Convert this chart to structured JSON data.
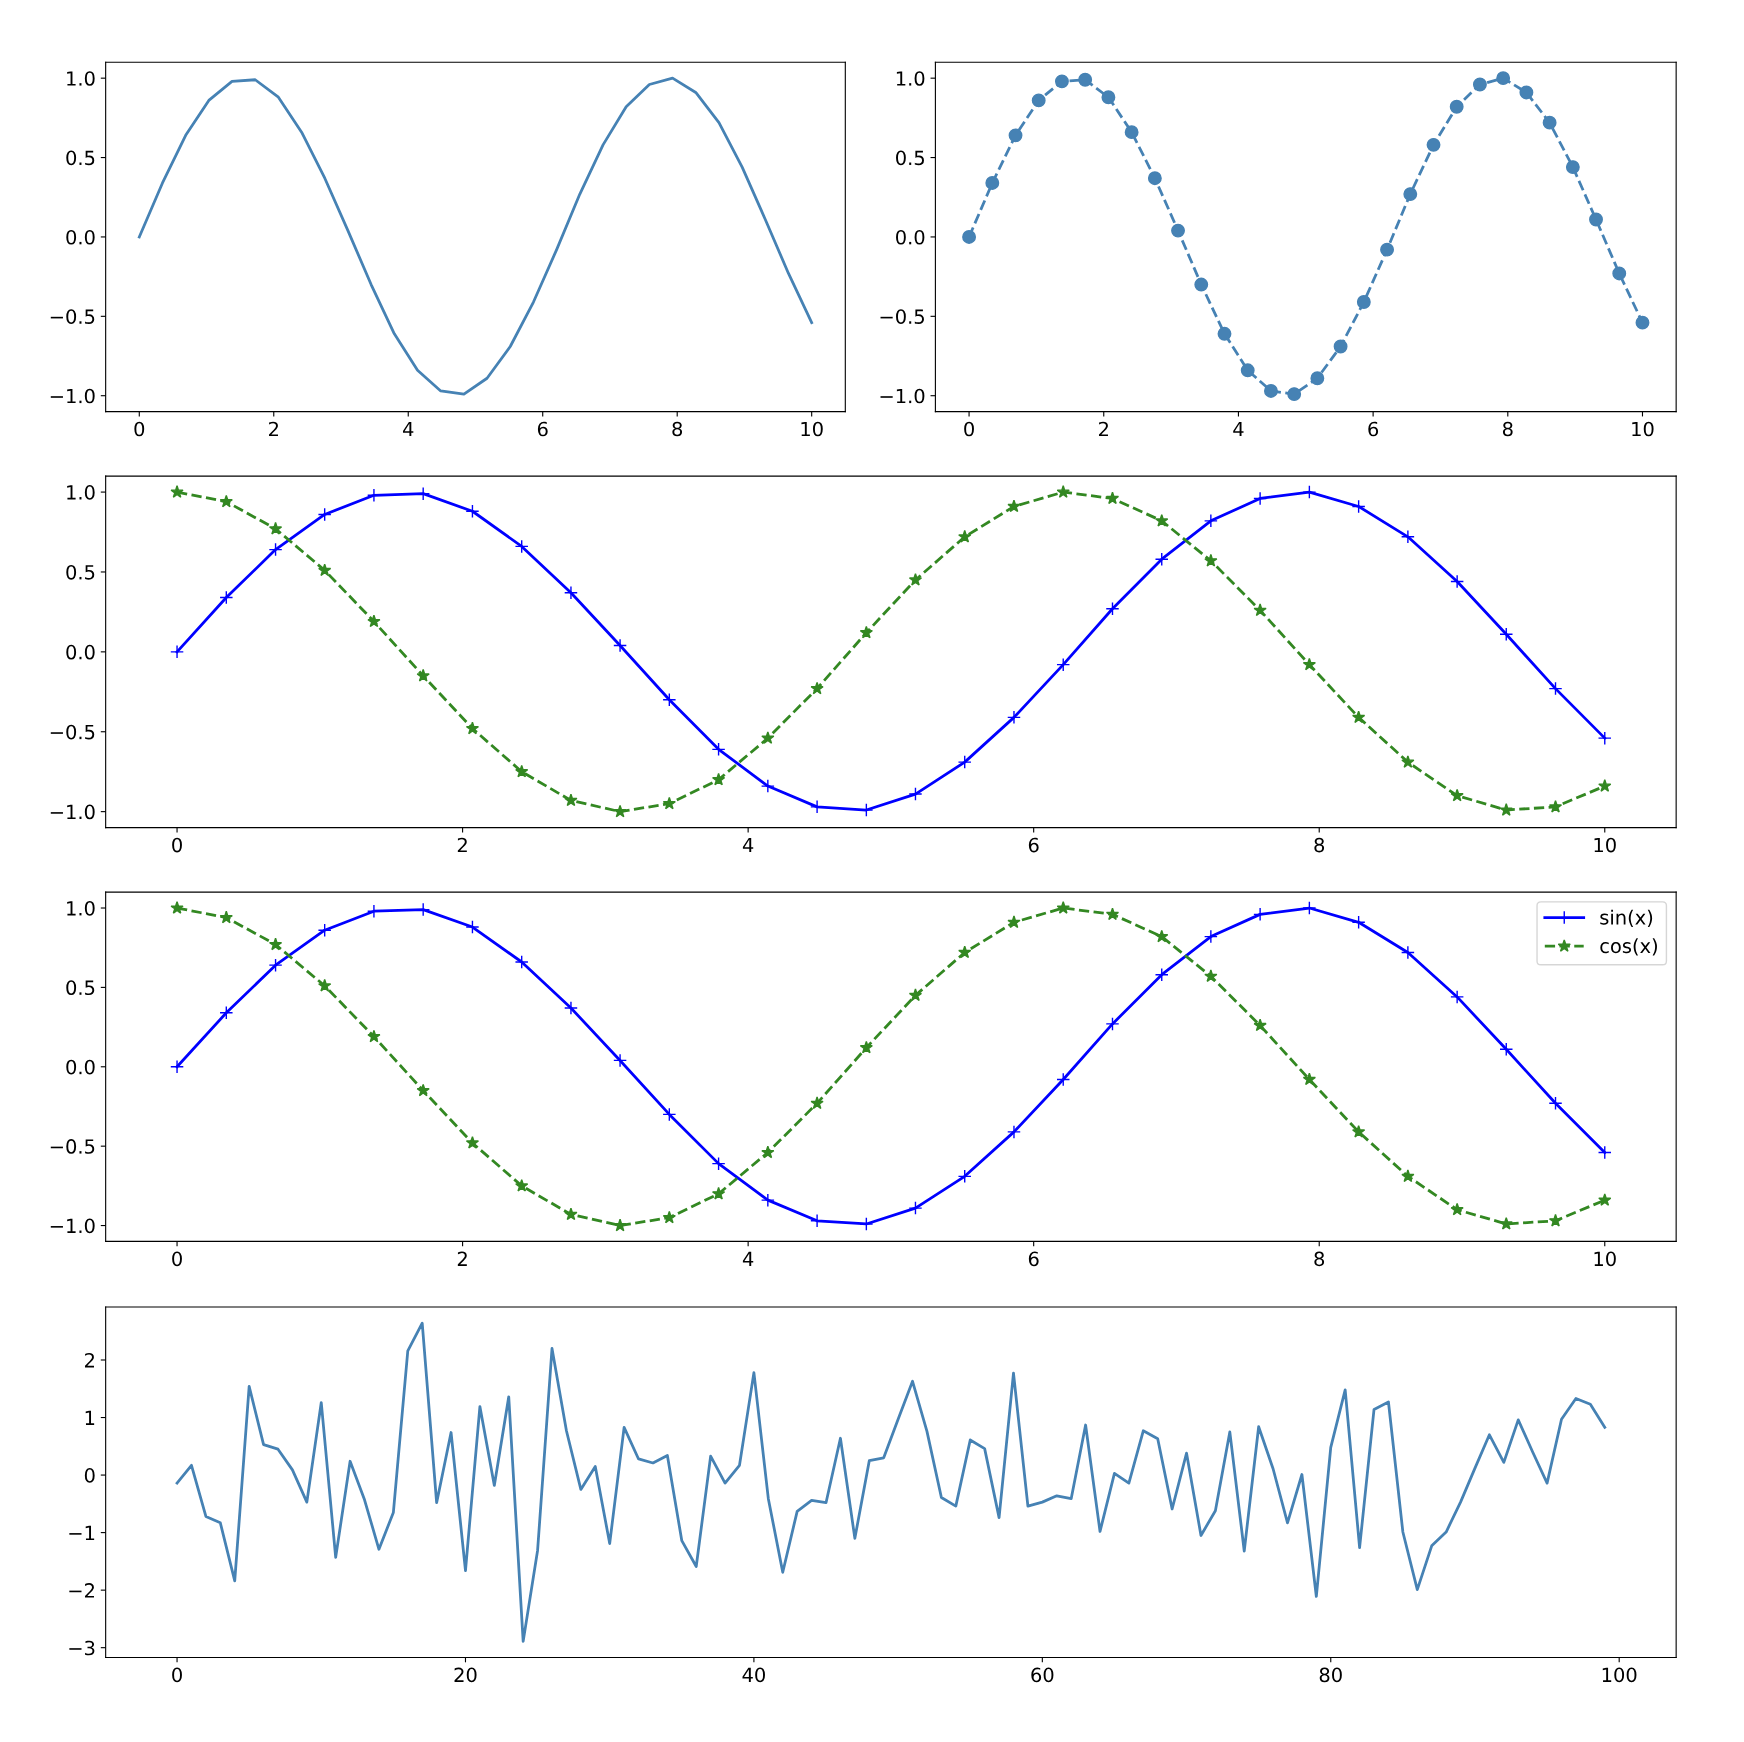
{
  "chart_data": [
    {
      "type": "line",
      "x": [
        0,
        0.345,
        0.69,
        1.034,
        1.379,
        1.724,
        2.069,
        2.414,
        2.759,
        3.103,
        3.448,
        3.793,
        4.138,
        4.483,
        4.828,
        5.172,
        5.517,
        5.862,
        6.207,
        6.552,
        6.897,
        7.241,
        7.586,
        7.931,
        8.276,
        8.621,
        8.966,
        9.31,
        9.655,
        10
      ],
      "series": [
        {
          "color": "#4682b4",
          "line_style": "solid",
          "marker": "none",
          "values": [
            0,
            0.34,
            0.64,
            0.86,
            0.98,
            0.99,
            0.88,
            0.66,
            0.37,
            0.04,
            -0.3,
            -0.61,
            -0.84,
            -0.97,
            -0.99,
            -0.89,
            -0.69,
            -0.41,
            -0.08,
            0.27,
            0.58,
            0.82,
            0.96,
            1.0,
            0.91,
            0.72,
            0.44,
            0.11,
            -0.23,
            -0.54
          ]
        }
      ],
      "xlim": [
        -0.5,
        10.5
      ],
      "ylim": [
        -1.1,
        1.1
      ],
      "xticks": [
        0,
        2,
        4,
        6,
        8,
        10
      ],
      "yticks": [
        {
          "value": -1.0,
          "label": "−1.0"
        },
        {
          "value": -0.5,
          "label": "−0.5"
        },
        {
          "value": 0,
          "label": "0.0"
        },
        {
          "value": 0.5,
          "label": "0.5"
        },
        {
          "value": 1.0,
          "label": "1.0"
        }
      ],
      "grid": false,
      "legend": false
    },
    {
      "type": "line",
      "x": [
        0,
        0.345,
        0.69,
        1.034,
        1.379,
        1.724,
        2.069,
        2.414,
        2.759,
        3.103,
        3.448,
        3.793,
        4.138,
        4.483,
        4.828,
        5.172,
        5.517,
        5.862,
        6.207,
        6.552,
        6.897,
        7.241,
        7.586,
        7.931,
        8.276,
        8.621,
        8.966,
        9.31,
        9.655,
        10
      ],
      "series": [
        {
          "color": "#4682b4",
          "line_style": "dashed",
          "marker": "circle",
          "values": [
            0,
            0.34,
            0.64,
            0.86,
            0.98,
            0.99,
            0.88,
            0.66,
            0.37,
            0.04,
            -0.3,
            -0.61,
            -0.84,
            -0.97,
            -0.99,
            -0.89,
            -0.69,
            -0.41,
            -0.08,
            0.27,
            0.58,
            0.82,
            0.96,
            1.0,
            0.91,
            0.72,
            0.44,
            0.11,
            -0.23,
            -0.54
          ]
        }
      ],
      "xlim": [
        -0.5,
        10.5
      ],
      "ylim": [
        -1.1,
        1.1
      ],
      "xticks": [
        0,
        2,
        4,
        6,
        8,
        10
      ],
      "yticks": [
        {
          "value": -1.0,
          "label": "−1.0"
        },
        {
          "value": -0.5,
          "label": "−0.5"
        },
        {
          "value": 0,
          "label": "0.0"
        },
        {
          "value": 0.5,
          "label": "0.5"
        },
        {
          "value": 1.0,
          "label": "1.0"
        }
      ],
      "grid": false,
      "legend": false
    },
    {
      "type": "line",
      "x": [
        0,
        0.345,
        0.69,
        1.034,
        1.379,
        1.724,
        2.069,
        2.414,
        2.759,
        3.103,
        3.448,
        3.793,
        4.138,
        4.483,
        4.828,
        5.172,
        5.517,
        5.862,
        6.207,
        6.552,
        6.897,
        7.241,
        7.586,
        7.931,
        8.276,
        8.621,
        8.966,
        9.31,
        9.655,
        10
      ],
      "series": [
        {
          "color": "#0000ff",
          "line_style": "solid",
          "marker": "cross",
          "values": [
            0,
            0.34,
            0.64,
            0.86,
            0.98,
            0.99,
            0.88,
            0.66,
            0.37,
            0.04,
            -0.3,
            -0.61,
            -0.84,
            -0.97,
            -0.99,
            -0.89,
            -0.69,
            -0.41,
            -0.08,
            0.27,
            0.58,
            0.82,
            0.96,
            1.0,
            0.91,
            0.72,
            0.44,
            0.11,
            -0.23,
            -0.54
          ]
        },
        {
          "color": "#338822",
          "line_style": "dashed",
          "marker": "star",
          "values": [
            1.0,
            0.94,
            0.77,
            0.51,
            0.19,
            -0.15,
            -0.48,
            -0.75,
            -0.93,
            -1.0,
            -0.95,
            -0.8,
            -0.54,
            -0.23,
            0.12,
            0.45,
            0.72,
            0.91,
            1.0,
            0.96,
            0.82,
            0.57,
            0.26,
            -0.08,
            -0.41,
            -0.69,
            -0.9,
            -0.99,
            -0.97,
            -0.84
          ]
        }
      ],
      "xlim": [
        -0.5,
        10.5
      ],
      "ylim": [
        -1.1,
        1.1
      ],
      "xticks": [
        0,
        2,
        4,
        6,
        8,
        10
      ],
      "yticks": [
        {
          "value": -1.0,
          "label": "−1.0"
        },
        {
          "value": -0.5,
          "label": "−0.5"
        },
        {
          "value": 0,
          "label": "0.0"
        },
        {
          "value": 0.5,
          "label": "0.5"
        },
        {
          "value": 1.0,
          "label": "1.0"
        }
      ],
      "grid": false,
      "legend": false
    },
    {
      "type": "line",
      "x": [
        0,
        0.345,
        0.69,
        1.034,
        1.379,
        1.724,
        2.069,
        2.414,
        2.759,
        3.103,
        3.448,
        3.793,
        4.138,
        4.483,
        4.828,
        5.172,
        5.517,
        5.862,
        6.207,
        6.552,
        6.897,
        7.241,
        7.586,
        7.931,
        8.276,
        8.621,
        8.966,
        9.31,
        9.655,
        10
      ],
      "series": [
        {
          "name": "sin(x)",
          "color": "#0000ff",
          "line_style": "solid",
          "marker": "cross",
          "values": [
            0,
            0.34,
            0.64,
            0.86,
            0.98,
            0.99,
            0.88,
            0.66,
            0.37,
            0.04,
            -0.3,
            -0.61,
            -0.84,
            -0.97,
            -0.99,
            -0.89,
            -0.69,
            -0.41,
            -0.08,
            0.27,
            0.58,
            0.82,
            0.96,
            1.0,
            0.91,
            0.72,
            0.44,
            0.11,
            -0.23,
            -0.54
          ]
        },
        {
          "name": "cos(x)",
          "color": "#338822",
          "line_style": "dashed",
          "marker": "star",
          "values": [
            1.0,
            0.94,
            0.77,
            0.51,
            0.19,
            -0.15,
            -0.48,
            -0.75,
            -0.93,
            -1.0,
            -0.95,
            -0.8,
            -0.54,
            -0.23,
            0.12,
            0.45,
            0.72,
            0.91,
            1.0,
            0.96,
            0.82,
            0.57,
            0.26,
            -0.08,
            -0.41,
            -0.69,
            -0.9,
            -0.99,
            -0.97,
            -0.84
          ]
        }
      ],
      "xlim": [
        -0.5,
        10.5
      ],
      "ylim": [
        -1.1,
        1.1
      ],
      "xticks": [
        0,
        2,
        4,
        6,
        8,
        10
      ],
      "yticks": [
        {
          "value": -1.0,
          "label": "−1.0"
        },
        {
          "value": -0.5,
          "label": "−0.5"
        },
        {
          "value": 0,
          "label": "0.0"
        },
        {
          "value": 0.5,
          "label": "0.5"
        },
        {
          "value": 1.0,
          "label": "1.0"
        }
      ],
      "grid": false,
      "legend": "top right"
    },
    {
      "type": "line",
      "x": [
        0,
        1,
        2,
        3,
        4,
        5,
        6,
        7,
        8,
        9,
        10,
        11,
        12,
        13,
        14,
        15,
        16,
        17,
        18,
        19,
        20,
        21,
        22,
        23,
        24,
        25,
        26,
        27,
        28,
        29,
        30,
        31,
        32,
        33,
        34,
        35,
        36,
        37,
        38,
        39,
        40,
        41,
        42,
        43,
        44,
        45,
        46,
        47,
        48,
        49,
        50,
        51,
        52,
        53,
        54,
        55,
        56,
        57,
        58,
        59,
        60,
        61,
        62,
        63,
        64,
        65,
        66,
        67,
        68,
        69,
        70,
        71,
        72,
        73,
        74,
        75,
        76,
        77,
        78,
        79,
        80,
        81,
        82,
        83,
        84,
        85,
        86,
        87,
        88,
        89,
        90,
        91,
        92,
        93,
        94,
        95,
        96,
        97,
        98,
        99
      ],
      "series": [
        {
          "color": "#4682b4",
          "line_style": "solid",
          "marker": "none",
          "values": [
            -0.14,
            0.17,
            -0.72,
            -0.83,
            -1.84,
            1.54,
            0.53,
            0.45,
            0.09,
            -0.47,
            1.26,
            -1.43,
            0.24,
            -0.43,
            -1.29,
            -0.65,
            2.16,
            2.64,
            -0.48,
            0.74,
            -1.66,
            1.19,
            -0.18,
            1.36,
            -2.89,
            -1.31,
            2.2,
            0.77,
            -0.25,
            0.15,
            -1.19,
            0.83,
            0.28,
            0.21,
            0.34,
            -1.14,
            -1.59,
            0.33,
            -0.14,
            0.17,
            1.78,
            -0.41,
            -1.69,
            -0.63,
            -0.44,
            -0.48,
            0.64,
            -1.1,
            0.25,
            0.3,
            0.97,
            1.63,
            0.76,
            -0.39,
            -0.54,
            0.61,
            0.46,
            -0.74,
            1.77,
            -0.54,
            -0.47,
            -0.36,
            -0.41,
            0.87,
            -0.98,
            0.03,
            -0.14,
            0.77,
            0.63,
            -0.59,
            0.38,
            -1.05,
            -0.62,
            0.75,
            -1.32,
            0.84,
            0.11,
            -0.83,
            0.01,
            -2.11,
            0.48,
            1.48,
            -1.26,
            1.14,
            1.27,
            -0.99,
            -1.99,
            -1.23,
            -0.99,
            -0.47,
            0.12,
            0.7,
            0.22,
            0.96,
            0.4,
            -0.14,
            0.97,
            1.33,
            1.23,
            0.83
          ]
        }
      ],
      "xlim": [
        -4.95,
        103.95
      ],
      "ylim": [
        -3.17,
        2.92
      ],
      "xticks": [
        0,
        20,
        40,
        60,
        80,
        100
      ],
      "yticks": [
        {
          "value": -3,
          "label": "−3"
        },
        {
          "value": -2,
          "label": "−2"
        },
        {
          "value": -1,
          "label": "−1"
        },
        0,
        1,
        2
      ],
      "grid": false,
      "legend": false
    }
  ]
}
